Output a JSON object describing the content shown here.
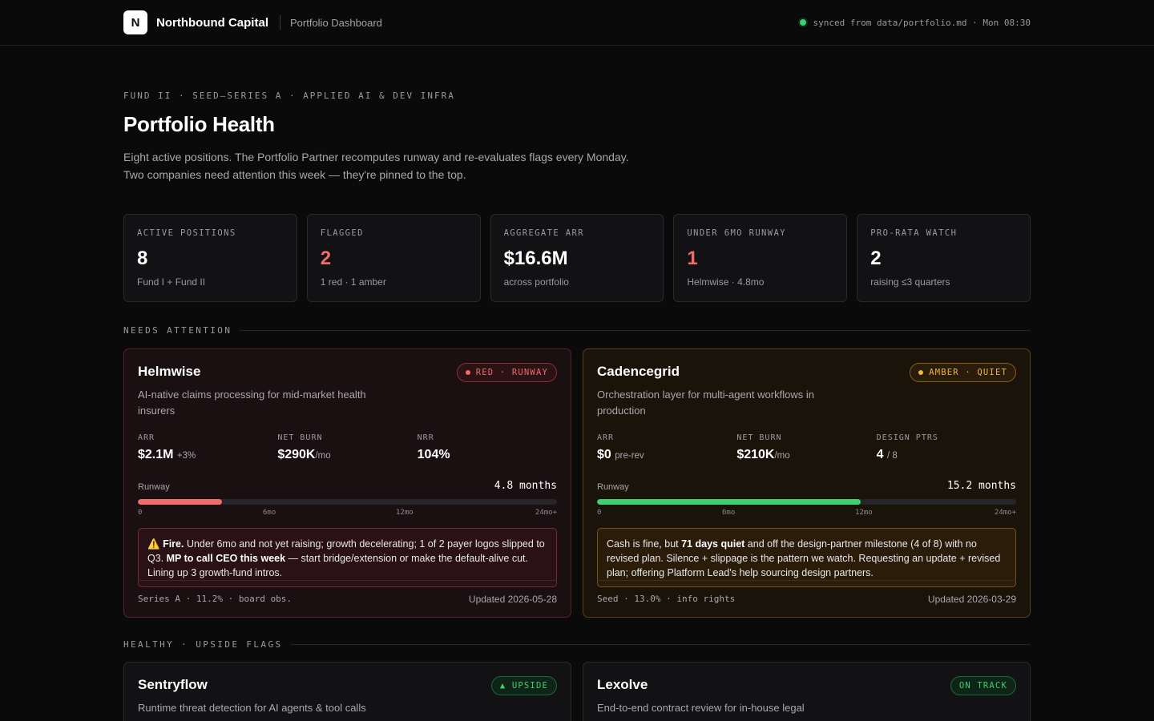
{
  "header": {
    "logo_letter": "N",
    "brand_name": "Northbound Capital",
    "subtitle": "Portfolio Dashboard",
    "sync_text": "synced from data/portfolio.md · Mon 08:30",
    "sync_color": "#3ecf6e"
  },
  "hero": {
    "eyebrow": "FUND II · SEED–SERIES A · APPLIED AI & DEV INFRA",
    "title": "Portfolio Health",
    "intro_line1": "Eight active positions. The Portfolio Partner recomputes runway and re-evaluates flags every Monday.",
    "intro_line2": "Two companies need attention this week — they're pinned to the top."
  },
  "stats": [
    {
      "label": "ACTIVE POSITIONS",
      "value": "8",
      "sub": "Fund I + Fund II"
    },
    {
      "label": "FLAGGED",
      "value": "2",
      "sub": "1 red · 1 amber"
    },
    {
      "label": "AGGREGATE ARR",
      "value": "$16.6M",
      "sub": "across portfolio"
    },
    {
      "label": "UNDER 6MO RUNWAY",
      "value": "1",
      "sub": "Helmwise · 4.8mo"
    },
    {
      "label": "PRO-RATA WATCH",
      "value": "2",
      "sub": "raising ≤3 quarters"
    }
  ],
  "sections": {
    "attention": "NEEDS ATTENTION",
    "healthy": "HEALTHY · UPSIDE FLAGS"
  },
  "attention_cards": [
    {
      "name": "Helmwise",
      "badge": "RED · RUNWAY",
      "desc": "AI-native claims processing for mid-market health insurers",
      "m1_label": "ARR",
      "m1_value": "$2.1M",
      "m1_suffix": "+3%",
      "m2_label": "NET BURN",
      "m2_value": "$290K",
      "m2_suffix": "/mo",
      "m3_label": "NRR",
      "m3_value": "104%",
      "m3_suffix": "",
      "runway_label": "Runway",
      "runway_value": "4.8 months",
      "runway_fill_fraction": 0.2,
      "bar_color": "#f26b6b",
      "ticks": [
        "0",
        "6mo",
        "12mo",
        "24mo+"
      ],
      "note_icon": "⚠️",
      "note_bold1": "Fire.",
      "note_text1": " Under 6mo and not yet raising; growth decelerating; 1 of 2 payer logos slipped to Q3. ",
      "note_bold2": "MP to call CEO this week",
      "note_text2": " — start bridge/extension or make the default-alive cut. Lining up 3 growth-fund intros.",
      "foot_left": "Series A · 11.2% · board obs.",
      "foot_right": "Updated 2026-05-28"
    },
    {
      "name": "Cadencegrid",
      "badge": "AMBER · QUIET",
      "desc": "Orchestration layer for multi-agent workflows in production",
      "m1_label": "ARR",
      "m1_value": "$0",
      "m1_suffix": "pre-rev",
      "m2_label": "NET BURN",
      "m2_value": "$210K",
      "m2_suffix": "/mo",
      "m3_label": "DESIGN PTRS",
      "m3_value": "4",
      "m3_suffix": "/ 8",
      "runway_label": "Runway",
      "runway_value": "15.2 months",
      "runway_fill_fraction": 0.63,
      "bar_color": "#3ecf6e",
      "ticks": [
        "0",
        "6mo",
        "12mo",
        "24mo+"
      ],
      "note_text1": "Cash is fine, but ",
      "note_bold1": "71 days quiet",
      "note_text2": " and off the design-partner milestone (4 of 8) with no revised plan. Silence + slippage is the pattern we watch. Requesting an update + revised plan; offering Platform Lead's help sourcing design partners.",
      "foot_left": "Seed · 13.0% · info rights",
      "foot_right": "Updated 2026-03-29"
    }
  ],
  "healthy_cards": [
    {
      "name": "Sentryflow",
      "badge": "▲ UPSIDE",
      "desc": "Runtime threat detection for AI agents & tool calls"
    },
    {
      "name": "Lexolve",
      "badge": "ON TRACK",
      "desc": "End-to-end contract review for in-house legal"
    }
  ]
}
